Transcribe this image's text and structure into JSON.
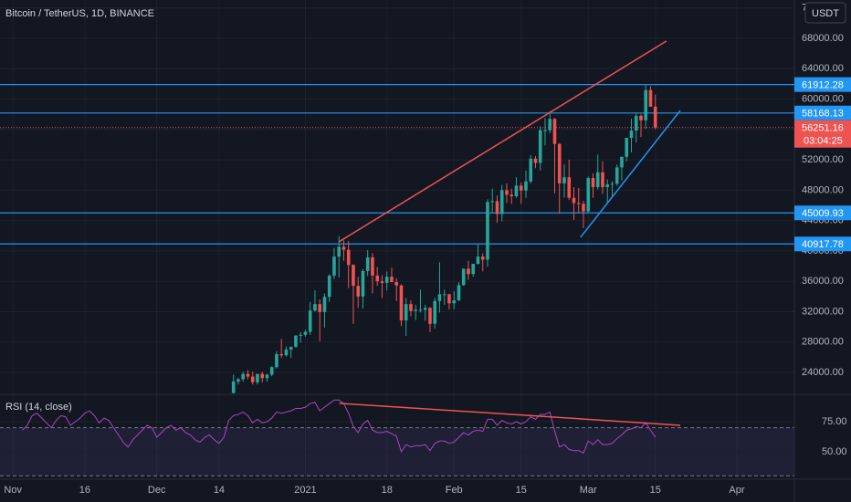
{
  "chart_data": {
    "type": "candlestick",
    "title": "Bitcoin / TetherUS, 1D, BINANCE",
    "currency": "USDT",
    "countdown": "03:04:25",
    "colors": {
      "up": "#26a69a",
      "down": "#ef5350",
      "level": "#2196f3",
      "grid": "#1e222d"
    },
    "xlim": [
      -45.7,
      120
    ],
    "xticks": [
      {
        "value": -43,
        "label": "Nov"
      },
      {
        "value": -28,
        "label": "16"
      },
      {
        "value": -13,
        "label": "Dec"
      },
      {
        "value": 0,
        "label": "14"
      },
      {
        "value": 18,
        "label": "2021"
      },
      {
        "value": 35,
        "label": "18"
      },
      {
        "value": 49,
        "label": "Feb"
      },
      {
        "value": 63,
        "label": "15"
      },
      {
        "value": 77,
        "label": "Mar"
      },
      {
        "value": 91,
        "label": "15"
      },
      {
        "value": 108,
        "label": "Apr"
      }
    ],
    "ylim": [
      21115,
      73050
    ],
    "yticks": [
      {
        "value": 24000,
        "label": "24000.00"
      },
      {
        "value": 28000,
        "label": "28000.00"
      },
      {
        "value": 32000,
        "label": "32000.00"
      },
      {
        "value": 36000,
        "label": "36000.00"
      },
      {
        "value": 40000,
        "label": "40000.00"
      },
      {
        "value": 44000,
        "label": "44000.00"
      },
      {
        "value": 48000,
        "label": "48000.00"
      },
      {
        "value": 52000,
        "label": "52000.00"
      },
      {
        "value": 56000,
        "label": "56000.00"
      },
      {
        "value": 60000,
        "label": "60000.00"
      },
      {
        "value": 64000,
        "label": "64000.00"
      },
      {
        "value": 68000,
        "label": "68000.00"
      },
      {
        "value": 72000,
        "label": "72000.00"
      }
    ],
    "x": [
      -41,
      -40,
      -39,
      -38,
      -37,
      -36,
      -35,
      -34,
      -33,
      -32,
      -31,
      -30,
      -29,
      -28,
      -27,
      -26,
      -25,
      -24,
      -23,
      -22,
      -21,
      -20,
      -19,
      -18,
      -17,
      -16,
      -15,
      -14,
      -13,
      -12,
      -11,
      -10,
      -9,
      -8,
      -7,
      -6,
      -5,
      -4,
      -3,
      -2,
      -1,
      0,
      1,
      2,
      3,
      4,
      5,
      6,
      7,
      8,
      9,
      10,
      11,
      12,
      13,
      14,
      15,
      16,
      17,
      18,
      19,
      20,
      21,
      22,
      23,
      24,
      25,
      26,
      27,
      28,
      29,
      30,
      31,
      32,
      33,
      34,
      35,
      36,
      37,
      38,
      39,
      40,
      41,
      42,
      43,
      44,
      45,
      46,
      47,
      48,
      49,
      50,
      51,
      52,
      53,
      54,
      55,
      56,
      57,
      58,
      59,
      60,
      61,
      62,
      63,
      64,
      65,
      66,
      67,
      68,
      69,
      70,
      71,
      72,
      73,
      74,
      75,
      76,
      77,
      78,
      79,
      80,
      81,
      82,
      83,
      84,
      85,
      86,
      87,
      88,
      89,
      90,
      91
    ],
    "ohlc": [
      null,
      null,
      null,
      null,
      null,
      null,
      null,
      null,
      null,
      null,
      null,
      null,
      null,
      null,
      null,
      null,
      null,
      null,
      null,
      null,
      null,
      null,
      null,
      null,
      null,
      null,
      null,
      null,
      null,
      null,
      null,
      null,
      null,
      null,
      null,
      null,
      null,
      null,
      null,
      null,
      null,
      null,
      null,
      null,
      [
        21300,
        23700,
        21200,
        22800
      ],
      [
        22800,
        23300,
        22400,
        23100
      ],
      [
        23100,
        24100,
        22800,
        23800
      ],
      [
        23800,
        24300,
        23100,
        23450
      ],
      [
        23450,
        24100,
        22400,
        22700
      ],
      [
        22700,
        23800,
        22400,
        23800
      ],
      [
        23800,
        24100,
        22700,
        23250
      ],
      [
        23250,
        23800,
        22800,
        23700
      ],
      [
        23700,
        24800,
        23500,
        24700
      ],
      [
        24700,
        26800,
        24500,
        26400
      ],
      [
        26400,
        28400,
        25900,
        26250
      ],
      [
        26250,
        27400,
        26100,
        27000
      ],
      [
        27000,
        27400,
        25900,
        27350
      ],
      [
        27350,
        28900,
        27300,
        28850
      ],
      [
        28850,
        29300,
        27900,
        28950
      ],
      [
        28950,
        29600,
        28700,
        29350
      ],
      [
        29350,
        33300,
        28950,
        32150
      ],
      [
        32150,
        34800,
        32000,
        33000
      ],
      [
        33000,
        33600,
        28100,
        31950
      ],
      [
        31950,
        34400,
        29900,
        33950
      ],
      [
        33950,
        36900,
        33300,
        36750
      ],
      [
        36750,
        40400,
        36300,
        39250
      ],
      [
        39250,
        41950,
        36500,
        40550
      ],
      [
        40550,
        41400,
        38700,
        40150
      ],
      [
        40150,
        41300,
        35100,
        38150
      ],
      [
        38150,
        38250,
        30400,
        35400
      ],
      [
        35400,
        36600,
        32500,
        34000
      ],
      [
        34000,
        37600,
        32400,
        37350
      ],
      [
        37350,
        40100,
        36700,
        39150
      ],
      [
        39150,
        39700,
        34400,
        36750
      ],
      [
        36750,
        37900,
        35400,
        36000
      ],
      [
        36000,
        36800,
        33800,
        35800
      ],
      [
        35800,
        37300,
        34800,
        36600
      ],
      [
        36600,
        37800,
        35900,
        35900
      ],
      [
        35900,
        36400,
        33400,
        35450
      ],
      [
        35450,
        35600,
        30100,
        30850
      ],
      [
        30850,
        33800,
        28800,
        33000
      ],
      [
        33000,
        33500,
        31400,
        32100
      ],
      [
        32100,
        32900,
        30900,
        32250
      ],
      [
        32250,
        34900,
        31900,
        32250
      ],
      [
        32250,
        32900,
        30800,
        32500
      ],
      [
        32500,
        32600,
        29300,
        30400
      ],
      [
        30400,
        33800,
        29800,
        33400
      ],
      [
        33400,
        38500,
        31900,
        34300
      ],
      [
        34300,
        34900,
        32900,
        34300
      ],
      [
        34300,
        34300,
        32300,
        33100
      ],
      [
        33100,
        34700,
        32300,
        33500
      ],
      [
        33500,
        35900,
        33400,
        35500
      ],
      [
        35500,
        37700,
        35400,
        37650
      ],
      [
        37650,
        38700,
        36200,
        36950
      ],
      [
        36950,
        38300,
        36600,
        38300
      ],
      [
        38300,
        40900,
        38200,
        39250
      ],
      [
        39250,
        39700,
        37300,
        38850
      ],
      [
        38850,
        46800,
        37900,
        46450
      ],
      [
        46450,
        48200,
        45000,
        46550
      ],
      [
        46550,
        47300,
        43700,
        44850
      ],
      [
        44850,
        48700,
        43900,
        48000
      ],
      [
        48000,
        48900,
        46300,
        47400
      ],
      [
        47400,
        48200,
        46200,
        47200
      ],
      [
        47200,
        49700,
        47000,
        48600
      ],
      [
        48600,
        49000,
        46200,
        47950
      ],
      [
        47950,
        50600,
        47000,
        49150
      ],
      [
        49150,
        52600,
        48900,
        52150
      ],
      [
        52150,
        52500,
        50900,
        51600
      ],
      [
        51600,
        56400,
        50600,
        55900
      ],
      [
        55900,
        57500,
        53900,
        55900
      ],
      [
        55900,
        58400,
        55500,
        57400
      ],
      [
        57400,
        57500,
        47600,
        54100
      ],
      [
        54100,
        54200,
        44900,
        48900
      ],
      [
        48900,
        51400,
        47000,
        49700
      ],
      [
        49700,
        52000,
        46700,
        47000
      ],
      [
        47000,
        48400,
        44100,
        46300
      ],
      [
        46300,
        48300,
        45000,
        46200
      ],
      [
        46200,
        46600,
        43000,
        45200
      ],
      [
        45200,
        49800,
        45100,
        49600
      ],
      [
        49600,
        50200,
        47000,
        48400
      ],
      [
        48400,
        52700,
        48100,
        50350
      ],
      [
        50350,
        51800,
        47500,
        48400
      ],
      [
        48400,
        49400,
        46300,
        48750
      ],
      [
        48750,
        49200,
        47100,
        48850
      ],
      [
        48850,
        51400,
        48600,
        51000
      ],
      [
        51000,
        52400,
        49300,
        52400
      ],
      [
        52400,
        54900,
        51800,
        54900
      ],
      [
        54900,
        57400,
        53000,
        55850
      ],
      [
        55850,
        58100,
        54300,
        57800
      ],
      [
        57800,
        58000,
        55000,
        57200
      ],
      [
        57200,
        61800,
        56100,
        61200
      ],
      [
        61200,
        61700,
        59000,
        59000
      ],
      [
        59000,
        60600,
        56000,
        56251.16
      ]
    ],
    "levels": [
      61912.28,
      58168.13,
      45009.93,
      40917.78
    ],
    "trendlines": [
      {
        "color": "#ef5350",
        "points": [
          [
            25,
            41200
          ],
          [
            93.3,
            67640
          ]
        ]
      },
      {
        "color": "#2196f3",
        "points": [
          [
            75.4,
            41800
          ],
          [
            96.2,
            58500
          ]
        ]
      }
    ],
    "rsi": {
      "title": "RSI (14, close)",
      "color": "#ab47bc",
      "ylim": [
        27.3,
        97.7
      ],
      "levels": [
        30,
        70
      ],
      "yticks": [
        {
          "value": 75,
          "label": "75.00"
        },
        {
          "value": 50,
          "label": "50.00"
        }
      ],
      "values": [
        68,
        72,
        80,
        82,
        78,
        74,
        70,
        76,
        80,
        79,
        72,
        75,
        78,
        82,
        84,
        80,
        74,
        78,
        76,
        70,
        64,
        58,
        54,
        60,
        64,
        68,
        72,
        70,
        62,
        66,
        70,
        72,
        68,
        70,
        66,
        64,
        60,
        58,
        62,
        64,
        60,
        57,
        62,
        76,
        80,
        81,
        83,
        80,
        74,
        77,
        74,
        75,
        78,
        83,
        82,
        83,
        84,
        86,
        86,
        87,
        90,
        91,
        84,
        87,
        90,
        93,
        93,
        90,
        82,
        71,
        66,
        73,
        76,
        68,
        66,
        66,
        67,
        65,
        63,
        50,
        56,
        54,
        55,
        55,
        56,
        51,
        57,
        59,
        59,
        57,
        58,
        62,
        66,
        64,
        67,
        68,
        67,
        77,
        77,
        72,
        76,
        74,
        73,
        75,
        73,
        75,
        79,
        77,
        81,
        81,
        83,
        67,
        54,
        56,
        52,
        51,
        51,
        49,
        59,
        56,
        60,
        56,
        56,
        57,
        61,
        64,
        68,
        69,
        71,
        70,
        74,
        68,
        62
      ],
      "trendline": {
        "color": "#ef5350",
        "points": [
          [
            25.1,
            90.2
          ],
          [
            96.2,
            72
          ]
        ]
      }
    }
  }
}
